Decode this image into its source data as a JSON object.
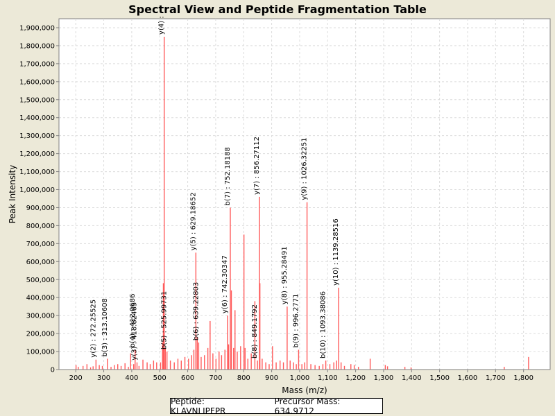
{
  "chart_data": {
    "type": "bar",
    "title": "Spectral View and Peptide Fragmentation Table",
    "xlabel": "Mass (m/z)",
    "ylabel": "Peak Intensity",
    "xlim": [
      140,
      1895
    ],
    "ylim": [
      0,
      1950000
    ],
    "x_ticks": [
      200,
      300,
      400,
      500,
      600,
      700,
      800,
      900,
      1000,
      1100,
      1200,
      1300,
      1400,
      1500,
      1600,
      1700,
      1800
    ],
    "y_ticks": [
      0,
      100000,
      200000,
      300000,
      400000,
      500000,
      600000,
      700000,
      800000,
      900000,
      1000000,
      1100000,
      1200000,
      1300000,
      1400000,
      1500000,
      1600000,
      1700000,
      1800000,
      1900000
    ],
    "grid": true,
    "peak_color": "#FF5A5A",
    "peaks": [
      {
        "mass": 201,
        "intensity": 25000
      },
      {
        "mass": 209,
        "intensity": 15000
      },
      {
        "mass": 226,
        "intensity": 20000
      },
      {
        "mass": 240,
        "intensity": 30000
      },
      {
        "mass": 253,
        "intensity": 12000
      },
      {
        "mass": 262,
        "intensity": 18000
      },
      {
        "mass": 272.25525,
        "intensity": 55000
      },
      {
        "mass": 284,
        "intensity": 25000
      },
      {
        "mass": 295,
        "intensity": 20000
      },
      {
        "mass": 313.10608,
        "intensity": 60000
      },
      {
        "mass": 326,
        "intensity": 15000
      },
      {
        "mass": 338,
        "intensity": 25000
      },
      {
        "mass": 350,
        "intensity": 30000
      },
      {
        "mass": 362,
        "intensity": 20000
      },
      {
        "mass": 376,
        "intensity": 35000
      },
      {
        "mass": 388,
        "intensity": 15000
      },
      {
        "mass": 396,
        "intensity": 90000
      },
      {
        "mass": 407,
        "intensity": 30000
      },
      {
        "mass": 412.0686,
        "intensity": 110000
      },
      {
        "mass": 418.82465,
        "intensity": 40000
      },
      {
        "mass": 426,
        "intensity": 20000
      },
      {
        "mass": 440,
        "intensity": 55000
      },
      {
        "mass": 455,
        "intensity": 40000
      },
      {
        "mass": 466,
        "intensity": 30000
      },
      {
        "mass": 478,
        "intensity": 50000
      },
      {
        "mass": 489,
        "intensity": 40000
      },
      {
        "mass": 503,
        "intensity": 40000
      },
      {
        "mass": 510,
        "intensity": 150000
      },
      {
        "mass": 513,
        "intensity": 480000
      },
      {
        "mass": 516,
        "intensity": 1850000
      },
      {
        "mass": 520,
        "intensity": 120000
      },
      {
        "mass": 525.99731,
        "intensity": 100000
      },
      {
        "mass": 538,
        "intensity": 50000
      },
      {
        "mass": 552,
        "intensity": 40000
      },
      {
        "mass": 565,
        "intensity": 60000
      },
      {
        "mass": 577,
        "intensity": 50000
      },
      {
        "mass": 590,
        "intensity": 70000
      },
      {
        "mass": 603,
        "intensity": 60000
      },
      {
        "mass": 614,
        "intensity": 80000
      },
      {
        "mass": 622,
        "intensity": 110000
      },
      {
        "mass": 629.18652,
        "intensity": 650000
      },
      {
        "mass": 634,
        "intensity": 180000
      },
      {
        "mass": 639.22803,
        "intensity": 150000
      },
      {
        "mass": 648,
        "intensity": 70000
      },
      {
        "mass": 660,
        "intensity": 80000
      },
      {
        "mass": 672,
        "intensity": 120000
      },
      {
        "mass": 680,
        "intensity": 270000
      },
      {
        "mass": 690,
        "intensity": 90000
      },
      {
        "mass": 701,
        "intensity": 60000
      },
      {
        "mass": 712,
        "intensity": 100000
      },
      {
        "mass": 721,
        "intensity": 80000
      },
      {
        "mass": 733,
        "intensity": 110000
      },
      {
        "mass": 742.30347,
        "intensity": 300000
      },
      {
        "mass": 746,
        "intensity": 140000
      },
      {
        "mass": 752.18188,
        "intensity": 900000
      },
      {
        "mass": 756,
        "intensity": 440000
      },
      {
        "mass": 764,
        "intensity": 120000
      },
      {
        "mass": 769,
        "intensity": 330000
      },
      {
        "mass": 777,
        "intensity": 100000
      },
      {
        "mass": 789,
        "intensity": 130000
      },
      {
        "mass": 801,
        "intensity": 750000
      },
      {
        "mass": 805,
        "intensity": 120000
      },
      {
        "mass": 815,
        "intensity": 60000
      },
      {
        "mass": 827,
        "intensity": 90000
      },
      {
        "mass": 840,
        "intensity": 380000
      },
      {
        "mass": 849.1792,
        "intensity": 50000
      },
      {
        "mass": 856.27112,
        "intensity": 960000
      },
      {
        "mass": 858,
        "intensity": 480000
      },
      {
        "mass": 866,
        "intensity": 60000
      },
      {
        "mass": 879,
        "intensity": 40000
      },
      {
        "mass": 891,
        "intensity": 30000
      },
      {
        "mass": 903,
        "intensity": 130000
      },
      {
        "mass": 916,
        "intensity": 40000
      },
      {
        "mass": 930,
        "intensity": 50000
      },
      {
        "mass": 942,
        "intensity": 40000
      },
      {
        "mass": 955.28491,
        "intensity": 350000
      },
      {
        "mass": 966,
        "intensity": 50000
      },
      {
        "mass": 978,
        "intensity": 40000
      },
      {
        "mass": 988,
        "intensity": 30000
      },
      {
        "mass": 996.2771,
        "intensity": 110000
      },
      {
        "mass": 1008,
        "intensity": 30000
      },
      {
        "mass": 1018,
        "intensity": 40000
      },
      {
        "mass": 1026.32251,
        "intensity": 930000
      },
      {
        "mass": 1040,
        "intensity": 30000
      },
      {
        "mass": 1055,
        "intensity": 25000
      },
      {
        "mass": 1070,
        "intensity": 20000
      },
      {
        "mass": 1083,
        "intensity": 30000
      },
      {
        "mass": 1093.38086,
        "intensity": 50000
      },
      {
        "mass": 1108,
        "intensity": 30000
      },
      {
        "mass": 1122,
        "intensity": 40000
      },
      {
        "mass": 1132,
        "intensity": 50000
      },
      {
        "mass": 1139.28516,
        "intensity": 455000
      },
      {
        "mass": 1148,
        "intensity": 40000
      },
      {
        "mass": 1160,
        "intensity": 20000
      },
      {
        "mass": 1183,
        "intensity": 30000
      },
      {
        "mass": 1195,
        "intensity": 25000
      },
      {
        "mass": 1210,
        "intensity": 15000
      },
      {
        "mass": 1252,
        "intensity": 60000
      },
      {
        "mass": 1306,
        "intensity": 25000
      },
      {
        "mass": 1314,
        "intensity": 18000
      },
      {
        "mass": 1376,
        "intensity": 15000
      },
      {
        "mass": 1398,
        "intensity": 12000
      },
      {
        "mass": 1731,
        "intensity": 15000
      },
      {
        "mass": 1818,
        "intensity": 70000
      }
    ],
    "annotations": [
      {
        "label": "y(2) : 272.25525",
        "mass": 272.25525,
        "intensity": 55000
      },
      {
        "label": "b(3) : 313.10608",
        "mass": 313.10608,
        "intensity": 60000
      },
      {
        "label": "y(3) : 418.82465",
        "mass": 418.82465,
        "intensity": 40000
      },
      {
        "label": "b(4) : 412.0686",
        "mass": 412.0686,
        "intensity": 110000
      },
      {
        "label": "y(4) :",
        "mass": 516,
        "intensity": 1850000
      },
      {
        "label": "b(5) : 525.99731",
        "mass": 525.99731,
        "intensity": 100000
      },
      {
        "label": "y(5) : 629.18652",
        "mass": 629.18652,
        "intensity": 650000
      },
      {
        "label": "b(6) : 639.22803",
        "mass": 639.22803,
        "intensity": 150000
      },
      {
        "label": "y(6) : 742.30347",
        "mass": 742.30347,
        "intensity": 300000
      },
      {
        "label": "b(7) : 752.18188",
        "mass": 752.18188,
        "intensity": 900000
      },
      {
        "label": "b(8) : 849.1792",
        "mass": 849.1792,
        "intensity": 50000
      },
      {
        "label": "y(7) : 856.27112",
        "mass": 856.27112,
        "intensity": 960000
      },
      {
        "label": "y(8) : 955.28491",
        "mass": 955.28491,
        "intensity": 350000
      },
      {
        "label": "b(9) : 996.2771",
        "mass": 996.2771,
        "intensity": 110000
      },
      {
        "label": "y(9) : 1026.32251",
        "mass": 1026.32251,
        "intensity": 930000
      },
      {
        "label": "b(10) : 1093.38086",
        "mass": 1093.38086,
        "intensity": 50000
      },
      {
        "label": "y(10) : 1139.28516",
        "mass": 1139.28516,
        "intensity": 455000
      }
    ]
  },
  "legend": {
    "peptide": "Peptide: KLAVNLIPFPR",
    "precursor": "Precursor Mass: 634.9712"
  }
}
